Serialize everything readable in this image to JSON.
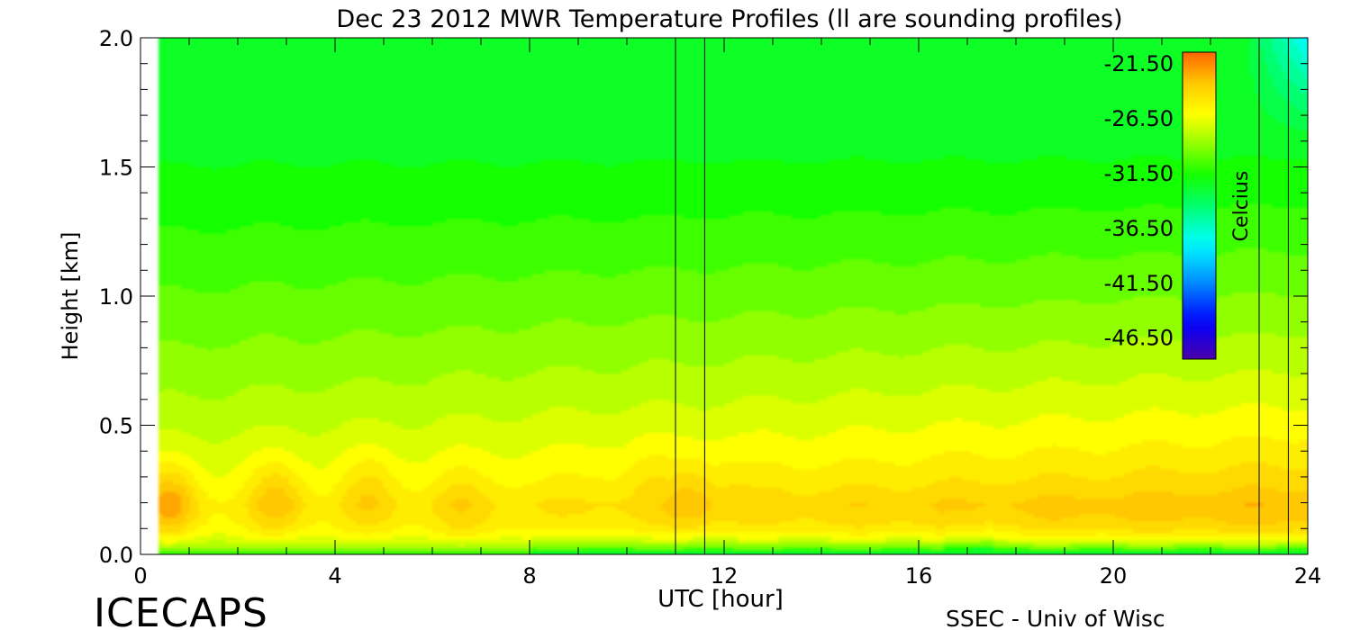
{
  "chart_data": {
    "type": "heatmap",
    "title": "Dec 23 2012 MWR Temperature Profiles (ll are sounding profiles)",
    "xlabel": "UTC [hour]",
    "ylabel": "Height [km]",
    "xlim": [
      0,
      24
    ],
    "ylim": [
      0,
      2.0
    ],
    "x_ticks": [
      0,
      4,
      8,
      12,
      16,
      20,
      24
    ],
    "x_tick_labels": [
      "0",
      "4",
      "8",
      "12",
      "16",
      "20",
      "24"
    ],
    "y_ticks": [
      0.0,
      0.5,
      1.0,
      1.5,
      2.0
    ],
    "y_tick_labels": [
      "0.0",
      "0.5",
      "1.0",
      "1.5",
      "2.0"
    ],
    "colorbar": {
      "label": "Celcius",
      "ticks": [
        -21.5,
        -26.5,
        -31.5,
        -36.5,
        -41.5,
        -46.5
      ],
      "tick_labels": [
        "-21.50",
        "-26.50",
        "-31.50",
        "-36.50",
        "-41.50",
        "-46.50"
      ],
      "range": [
        -48.5,
        -20.5
      ]
    },
    "sounding_profiles_utc": [
      11.0,
      11.6,
      23.0,
      23.6
    ],
    "data_start_utc": 0.35,
    "warm_cores": [
      {
        "hour": 0.6,
        "height_km": 0.2,
        "temp_c": -22.0
      },
      {
        "hour": 2.8,
        "height_km": 0.22,
        "temp_c": -22.8
      },
      {
        "hour": 4.7,
        "height_km": 0.25,
        "temp_c": -23.3
      },
      {
        "hour": 6.6,
        "height_km": 0.2,
        "temp_c": -23.6
      },
      {
        "hour": 9.5,
        "height_km": 0.33,
        "temp_c": -24.2
      },
      {
        "hour": 10.6,
        "height_km": 0.3,
        "temp_c": -23.5
      },
      {
        "hour": 11.3,
        "height_km": 0.22,
        "temp_c": -22.6
      },
      {
        "hour": 12.0,
        "height_km": 0.27,
        "temp_c": -23.6
      },
      {
        "hour": 13.2,
        "height_km": 0.3,
        "temp_c": -23.8
      },
      {
        "hour": 15.2,
        "height_km": 0.3,
        "temp_c": -24.2
      },
      {
        "hour": 18.3,
        "height_km": 0.25,
        "temp_c": -25.0
      },
      {
        "hour": 20.3,
        "height_km": 0.25,
        "temp_c": -25.2
      }
    ]
  },
  "footer": {
    "left_text": "ICECAPS",
    "right_text": "SSEC - Univ of Wisc"
  }
}
